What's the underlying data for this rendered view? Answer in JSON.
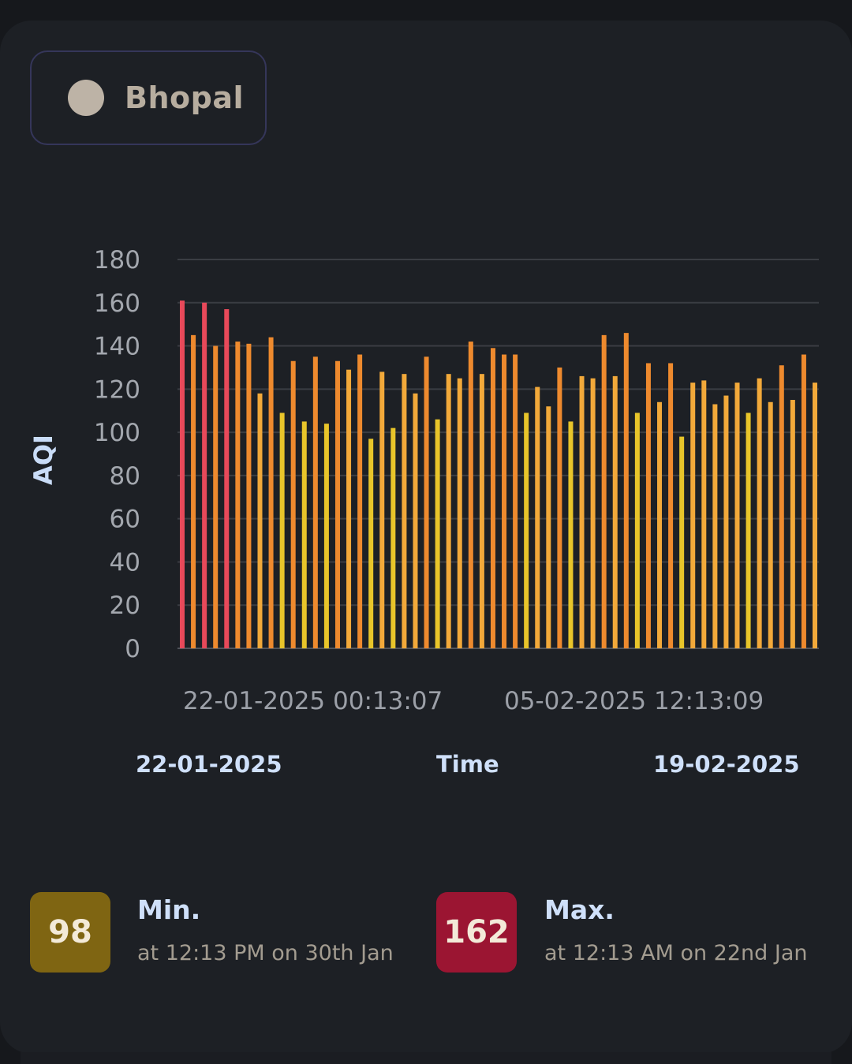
{
  "location": {
    "name": "Bhopal",
    "dot_color": "#bdb3a6"
  },
  "chart_data": {
    "type": "bar",
    "ylabel": "AQI",
    "xlabel": "Time",
    "ylim": [
      0,
      180
    ],
    "yticks": [
      0,
      20,
      40,
      60,
      80,
      100,
      120,
      140,
      160,
      180
    ],
    "grid": true,
    "xtick_labels": [
      "22-01-2025 00:13:07",
      "05-02-2025 12:13:09"
    ],
    "values": [
      161,
      145,
      160,
      140,
      157,
      142,
      141,
      118,
      144,
      109,
      133,
      105,
      135,
      104,
      133,
      129,
      136,
      97,
      128,
      102,
      127,
      118,
      135,
      106,
      127,
      125,
      142,
      127,
      139,
      136,
      136,
      109,
      121,
      112,
      130,
      105,
      126,
      125,
      145,
      126,
      146,
      109,
      132,
      114,
      132,
      98,
      123,
      124,
      113,
      117,
      123,
      109,
      125,
      114,
      131,
      115,
      136,
      123
    ],
    "colors": {
      "low": "#e8c52a",
      "mid": "#ee8a2e",
      "high": "#e8495a"
    }
  },
  "range": {
    "start": "22-01-2025",
    "end": "19-02-2025"
  },
  "stats": {
    "min": {
      "value": "98",
      "title": "Min.",
      "detail": "at 12:13 PM on 30th Jan",
      "color": "#7f6512"
    },
    "max": {
      "value": "162",
      "title": "Max.",
      "detail": "at 12:13 AM on 22nd Jan",
      "color": "#9b1532"
    }
  }
}
